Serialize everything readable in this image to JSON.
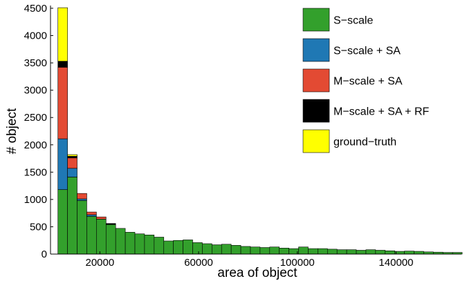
{
  "chart_data": {
    "type": "bar",
    "stacked": true,
    "xlabel": "area of object",
    "ylabel": "# object",
    "xlim": [
      0,
      166500
    ],
    "ylim": [
      0,
      4550
    ],
    "bin_width": 3900,
    "bin_start": 3000,
    "x_ticks": [
      20000,
      60000,
      100000,
      140000
    ],
    "y_ticks": [
      0,
      500,
      1000,
      1500,
      2000,
      2500,
      3000,
      3500,
      4000,
      4500
    ],
    "legend_position": "top-right",
    "series": [
      {
        "name": "S−scale",
        "color": "#33a02c",
        "values": [
          1180,
          1410,
          980,
          690,
          640,
          540,
          470,
          400,
          370,
          350,
          310,
          240,
          250,
          260,
          210,
          190,
          170,
          180,
          160,
          140,
          130,
          120,
          130,
          110,
          100,
          130,
          100,
          100,
          90,
          80,
          80,
          70,
          80,
          70,
          60,
          50,
          55,
          50,
          40,
          35,
          30,
          30
        ]
      },
      {
        "name": "S−scale + SA",
        "color": "#1f78b4",
        "values": [
          930,
          160,
          30,
          30,
          0,
          0,
          0,
          0,
          0,
          0,
          0,
          0,
          0,
          0,
          0,
          0,
          0,
          0,
          0,
          0,
          0,
          0,
          0,
          0,
          0,
          0,
          0,
          0,
          0,
          0,
          0,
          0,
          0,
          0,
          0,
          0,
          0,
          0,
          0,
          0,
          0,
          0
        ]
      },
      {
        "name": "M−scale + SA",
        "color": "#e34a33",
        "values": [
          1310,
          190,
          100,
          50,
          40,
          0,
          0,
          0,
          0,
          0,
          0,
          0,
          0,
          0,
          0,
          0,
          0,
          0,
          0,
          0,
          0,
          0,
          0,
          0,
          0,
          0,
          0,
          0,
          0,
          0,
          0,
          0,
          0,
          0,
          0,
          0,
          0,
          0,
          0,
          0,
          0,
          0
        ]
      },
      {
        "name": "M−scale + SA + RF",
        "color": "#000000",
        "values": [
          110,
          30,
          0,
          0,
          0,
          20,
          0,
          0,
          0,
          0,
          0,
          0,
          0,
          0,
          0,
          0,
          0,
          0,
          0,
          0,
          0,
          0,
          0,
          0,
          0,
          0,
          0,
          0,
          0,
          0,
          0,
          0,
          0,
          0,
          0,
          0,
          0,
          0,
          0,
          0,
          0,
          0
        ]
      },
      {
        "name": "ground−truth",
        "color": "#ffff00",
        "values": [
          980,
          30,
          0,
          0,
          0,
          0,
          0,
          0,
          0,
          0,
          0,
          0,
          0,
          0,
          0,
          0,
          0,
          0,
          0,
          0,
          0,
          0,
          0,
          0,
          0,
          0,
          0,
          0,
          0,
          0,
          0,
          0,
          0,
          0,
          0,
          0,
          0,
          0,
          0,
          0,
          0,
          0
        ]
      }
    ]
  }
}
